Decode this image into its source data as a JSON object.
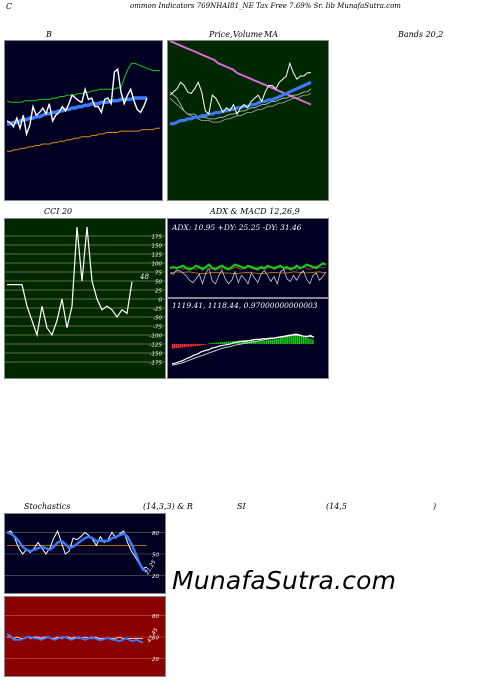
{
  "header": {
    "prefix": "C",
    "title": "ommon  Indicators 769NHAI81_NE Tax Free   7.69% Sr. Iib MunafaSutra.com"
  },
  "labels": {
    "bb": "B",
    "price": "Price,",
    "volume": "Volume",
    "ma": "MA",
    "bands": "Bands 20,2",
    "cci": "CCI 20",
    "adx_macd": "ADX  & MACD 12,26,9",
    "stoch": "Stochastics",
    "stoch_params": "(14,3,3) & R",
    "rsi": "SI",
    "rsi_params": "(14,5",
    "rsi_close": ")"
  },
  "watermark": "MunafaSutra.com",
  "colors": {
    "dark_panel": "#000022",
    "green_panel": "#002800",
    "red_panel": "#8b0000",
    "blue_line": "#3a7bff",
    "orange_line": "#d98a16",
    "green_line": "#12cc12",
    "pink_line": "#d86ad8"
  },
  "chart_data": [
    {
      "id": "bollinger",
      "type": "line",
      "ylim": [
        0,
        100
      ],
      "series": [
        {
          "values": [
            50,
            49,
            46,
            52,
            45,
            54,
            41,
            47,
            60,
            54,
            56,
            59,
            55,
            62,
            50,
            54,
            56,
            60,
            57,
            62,
            68,
            66,
            64,
            63,
            72,
            65,
            66,
            60,
            60,
            56,
            65,
            66,
            62,
            84,
            86,
            70,
            62,
            68,
            72,
            64,
            58,
            56,
            60,
            66
          ]
        },
        {
          "values": [
            48,
            48,
            49,
            49,
            50,
            51,
            51,
            52,
            52,
            53,
            53,
            54,
            55,
            55,
            56,
            56,
            57,
            57,
            58,
            58,
            59,
            59,
            60,
            60,
            61,
            61,
            62,
            62,
            62,
            63,
            63,
            63,
            64,
            64,
            64,
            65,
            65,
            65,
            65,
            66,
            66,
            66,
            66,
            66
          ]
        },
        {
          "values": [
            64,
            63,
            63,
            63,
            63,
            64,
            64,
            64,
            64,
            65,
            65,
            65,
            65,
            66,
            66,
            67,
            67,
            68,
            68,
            68,
            69,
            69,
            70,
            70,
            71,
            71,
            72,
            72,
            72,
            72,
            72,
            73,
            73,
            80,
            86,
            90,
            90,
            89,
            88,
            87,
            86,
            85,
            85,
            85
          ]
        },
        {
          "values": [
            29,
            29,
            30,
            30,
            31,
            31,
            32,
            32,
            33,
            33,
            34,
            34,
            34,
            35,
            35,
            36,
            36,
            37,
            37,
            38,
            38,
            39,
            39,
            39,
            40,
            40,
            41,
            41,
            42,
            42,
            42,
            42,
            43,
            43,
            43,
            43,
            43,
            43,
            44,
            44,
            44,
            44,
            45,
            45
          ]
        }
      ]
    },
    {
      "id": "price_ma",
      "type": "line",
      "ylim": [
        0,
        100
      ],
      "series": [
        {
          "values": [
            100,
            99,
            98,
            97,
            96,
            95,
            94,
            93,
            92,
            91,
            90,
            89,
            88,
            86,
            85,
            84,
            83,
            82,
            80,
            79,
            78,
            77,
            76,
            75,
            74,
            73,
            72,
            71,
            70,
            69,
            68,
            67,
            66,
            65,
            64,
            63,
            62,
            61,
            60
          ]
        },
        {
          "values": [
            66,
            68,
            70,
            74,
            72,
            68,
            67,
            70,
            74,
            68,
            56,
            54,
            66,
            64,
            60,
            55,
            58,
            56,
            60,
            54,
            58,
            60,
            58,
            62,
            64,
            66,
            62,
            68,
            72,
            72,
            70,
            74,
            76,
            78,
            86,
            80,
            76,
            78,
            78,
            80,
            80
          ]
        },
        {
          "values": [
            48,
            48,
            49,
            50,
            50,
            51,
            51,
            52,
            52,
            53,
            53,
            54,
            54,
            55,
            55,
            56,
            56,
            57,
            57,
            58,
            58,
            59,
            59,
            60,
            60,
            61,
            62,
            62,
            63,
            63,
            64,
            65,
            66,
            67,
            68,
            69,
            70,
            71,
            72,
            73,
            74
          ]
        },
        {
          "values": [
            68,
            66,
            64,
            60,
            56,
            54,
            54,
            54,
            52,
            52,
            52,
            51,
            51,
            51,
            52,
            52,
            53,
            54,
            54,
            55,
            56,
            56,
            57,
            58,
            58,
            59,
            60,
            60,
            61,
            62,
            62,
            63,
            64,
            64,
            65,
            66,
            66,
            67,
            68,
            68,
            70
          ]
        },
        {
          "values": [
            64,
            62,
            60,
            58,
            56,
            54,
            53,
            52,
            51,
            50,
            50,
            50,
            49,
            49,
            49,
            50,
            51,
            51,
            52,
            53,
            53,
            54,
            55,
            55,
            56,
            57,
            57,
            58,
            59,
            59,
            60,
            61,
            61,
            62,
            63,
            64,
            64,
            65,
            66,
            66,
            67
          ]
        }
      ]
    },
    {
      "id": "cci",
      "type": "line",
      "yticks": [
        175,
        150,
        125,
        100,
        75,
        50,
        25,
        0,
        -25,
        -50,
        -75,
        -100,
        -125,
        -150,
        -175
      ],
      "ylim": [
        -200,
        200
      ],
      "value_label": "48",
      "series": [
        {
          "values": [
            40,
            40,
            40,
            40,
            -20,
            -60,
            -100,
            -20,
            -80,
            -100,
            -60,
            0,
            -80,
            -20,
            200,
            50,
            200,
            50,
            0,
            -30,
            -20,
            -30,
            -50,
            -30,
            -40,
            48
          ]
        }
      ]
    },
    {
      "id": "adx",
      "type": "line",
      "text": "ADX: 10.95  +DY: 25.25  -DY: 31.46",
      "ylim": [
        0,
        100
      ],
      "series": [
        {
          "values": [
            40,
            42,
            41,
            42,
            40,
            39,
            40,
            41,
            40,
            40,
            39,
            40,
            41,
            40,
            39,
            40,
            41,
            40,
            40,
            42,
            41,
            40,
            41,
            42,
            40
          ]
        },
        {
          "values": [
            48,
            50,
            48,
            50,
            52,
            48,
            46,
            48,
            52,
            50,
            46,
            50,
            54,
            48,
            46,
            50,
            52,
            48,
            46,
            50,
            54,
            52,
            50,
            48,
            52,
            50,
            48,
            46,
            50,
            48,
            52,
            50,
            48,
            50,
            52,
            48,
            50,
            46,
            48,
            52,
            48,
            50,
            54,
            52,
            50,
            48,
            52,
            56,
            54
          ]
        },
        {
          "values": [
            50,
            50,
            48,
            50,
            46,
            48,
            50,
            48,
            46,
            48,
            50,
            48,
            46,
            48,
            50,
            46,
            48,
            50,
            48,
            46,
            50,
            48,
            46,
            48,
            50,
            48,
            46,
            50,
            48,
            46,
            48,
            50,
            46,
            48,
            50,
            48,
            46,
            50,
            48,
            46,
            48,
            50,
            48,
            46,
            48,
            52,
            50,
            48,
            50
          ]
        },
        {
          "values": [
            40,
            38,
            45,
            44,
            40,
            35,
            28,
            24,
            30,
            38,
            22,
            40,
            48,
            26,
            22,
            36,
            45,
            30,
            22,
            28,
            42,
            24,
            36,
            30,
            22,
            40,
            32,
            24,
            38,
            44,
            36,
            26,
            34,
            22,
            42,
            46,
            30,
            26,
            36,
            28,
            38,
            44,
            30,
            22,
            36,
            40,
            28,
            34,
            42
          ]
        }
      ]
    },
    {
      "id": "macd",
      "type": "bar",
      "text": "1119.41,  1118.44,  0.97000000000003",
      "ylim": [
        -100,
        100
      ],
      "series": [
        {
          "values": [
            -14,
            -13,
            -12,
            -12,
            -11,
            -11,
            -10,
            -9,
            -9,
            -8,
            -8,
            -7,
            -6,
            -6,
            -5,
            -4,
            -3,
            -2,
            -1,
            2,
            3,
            3,
            4,
            5,
            5,
            6,
            6,
            7,
            7,
            8,
            8,
            8,
            9,
            9,
            10,
            10,
            11,
            12,
            12,
            12,
            12,
            11,
            11,
            10,
            10,
            9,
            9,
            10,
            10,
            11,
            12,
            13,
            14,
            15,
            16,
            17,
            18,
            19,
            20,
            22,
            24,
            26,
            28,
            30,
            32,
            30,
            28,
            26,
            24,
            22,
            20,
            18,
            16,
            14
          ]
        },
        {
          "values": [
            -60,
            -58,
            -54,
            -50,
            -44,
            -40,
            -34,
            -30,
            -24,
            -20,
            -18,
            -12,
            -10,
            -6,
            -4,
            -2,
            0,
            4,
            6,
            8,
            8,
            10,
            12,
            14,
            14,
            16,
            16,
            18,
            18,
            20,
            22,
            24,
            26,
            28,
            30,
            28,
            24,
            22,
            26,
            20
          ]
        },
        {
          "values": [
            -64,
            -62,
            -60,
            -56,
            -52,
            -48,
            -44,
            -40,
            -36,
            -32,
            -28,
            -24,
            -20,
            -16,
            -12,
            -10,
            -8,
            -4,
            -2,
            0,
            2,
            4,
            6,
            8,
            10,
            12,
            14,
            16,
            18,
            20,
            20,
            22,
            24,
            26,
            26,
            26,
            24,
            24,
            22,
            22
          ]
        }
      ]
    },
    {
      "id": "stochastics",
      "type": "line",
      "yticks": [
        80,
        50,
        20
      ],
      "ylim": [
        0,
        100
      ],
      "value_label": "21.25",
      "series": [
        {
          "values": [
            80,
            82,
            72,
            58,
            50,
            56,
            52,
            58,
            66,
            58,
            50,
            58,
            72,
            82,
            66,
            50,
            54,
            72,
            70,
            74,
            80,
            76,
            70,
            62,
            74,
            66,
            70,
            80,
            72,
            78,
            82,
            66,
            54,
            46,
            36,
            30,
            32
          ]
        },
        {
          "values": [
            80,
            78,
            74,
            68,
            60,
            56,
            54,
            56,
            58,
            60,
            58,
            56,
            60,
            66,
            68,
            64,
            58,
            60,
            64,
            68,
            72,
            74,
            72,
            68,
            68,
            68,
            68,
            72,
            74,
            76,
            78,
            74,
            64,
            52,
            38,
            28,
            26
          ]
        },
        {
          "values": [
            62,
            62,
            62,
            62,
            62,
            62,
            62,
            62,
            62,
            62,
            62,
            62,
            62,
            62,
            62,
            62,
            62,
            62,
            62,
            62,
            62,
            62,
            62,
            62,
            62,
            62,
            62,
            62,
            62,
            62,
            62,
            62,
            62,
            62,
            62,
            62,
            62
          ]
        }
      ]
    },
    {
      "id": "rsi",
      "type": "line",
      "yticks": [
        80,
        50,
        20
      ],
      "ylim": [
        0,
        100
      ],
      "value_label": "43.45",
      "series": [
        {
          "values": [
            54,
            52,
            46,
            46,
            46,
            48,
            50,
            50,
            48,
            48,
            46,
            48,
            50,
            48,
            46,
            48,
            50,
            50,
            48,
            46,
            48,
            50,
            48,
            46,
            48,
            50,
            48,
            46,
            46,
            48,
            48,
            46,
            46,
            44,
            46,
            48,
            46,
            44,
            46,
            44,
            42
          ]
        },
        {
          "values": [
            50,
            50,
            48,
            50,
            48,
            48,
            50,
            48,
            50,
            50,
            48,
            50,
            50,
            48,
            48,
            50,
            48,
            50,
            50,
            48,
            50,
            48,
            48,
            50,
            48,
            48,
            50,
            48,
            48,
            48,
            48,
            48,
            48,
            50,
            48,
            48,
            48,
            48,
            48,
            48,
            48
          ]
        }
      ]
    }
  ]
}
